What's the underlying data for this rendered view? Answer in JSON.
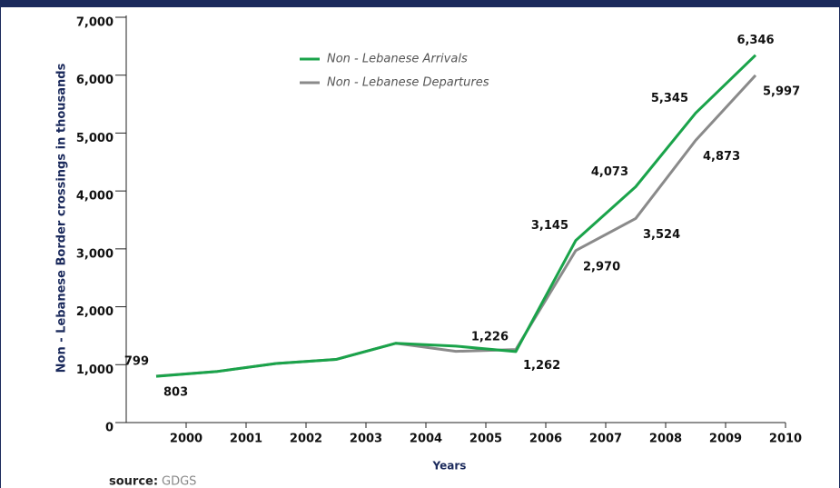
{
  "chart_data": {
    "type": "line",
    "x_label": "Years",
    "y_label": "Non - Lebanese Border crossings in thousands",
    "source_label": "source:",
    "source": "GDGS",
    "categories": [
      "2000",
      "2001",
      "2002",
      "2003",
      "2004",
      "2005",
      "2006",
      "2007",
      "2008",
      "2009",
      "2010"
    ],
    "ylim": [
      0,
      7000
    ],
    "yticks": [
      0,
      {
        "value": 1000,
        "label": "1,000"
      },
      {
        "value": 2000,
        "label": "2,000"
      },
      {
        "value": 3000,
        "label": "3,000"
      },
      {
        "value": 4000,
        "label": "4,000"
      },
      {
        "value": 5000,
        "label": "5,000"
      },
      {
        "value": 6000,
        "label": "6,000"
      },
      {
        "value": 7000,
        "label": "7,000"
      }
    ],
    "series": [
      {
        "name": "Non - Lebanese Arrivals",
        "color": "#1aa34a",
        "values": [
          799,
          880,
          1020,
          1090,
          1370,
          1320,
          1226,
          3145,
          4073,
          5345,
          6346
        ],
        "value_labels": [
          "799",
          null,
          null,
          null,
          null,
          null,
          "1,226",
          "3,145",
          "4,073",
          "5,345",
          "6,346"
        ]
      },
      {
        "name": "Non - Lebanese Departures",
        "color": "#8a8a8a",
        "values": [
          803,
          880,
          1020,
          1090,
          1370,
          1230,
          1262,
          2970,
          3524,
          4873,
          5997
        ],
        "value_labels": [
          "803",
          null,
          null,
          null,
          null,
          null,
          "1,262",
          "2,970",
          "3,524",
          "4,873",
          "5,997"
        ]
      }
    ]
  }
}
